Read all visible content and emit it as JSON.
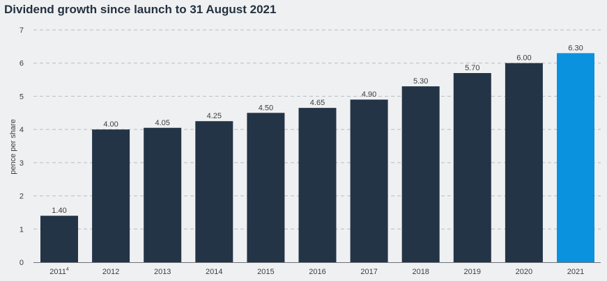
{
  "chart_data": {
    "type": "bar",
    "title": "Dividend growth since launch to 31 August 2021",
    "ylabel": "pence per share",
    "xlabel": "",
    "ylim": [
      0,
      7
    ],
    "yticks": [
      "0",
      "1",
      "2",
      "3",
      "4",
      "5",
      "6",
      "7"
    ],
    "grid": true,
    "categories": [
      "2011",
      "2012",
      "2013",
      "2014",
      "2015",
      "2016",
      "2017",
      "2018",
      "2019",
      "2020",
      "2021"
    ],
    "category_superscripts": [
      "4",
      "",
      "",
      "",
      "",
      "",
      "",
      "",
      "",
      "",
      ""
    ],
    "values": [
      1.4,
      4.0,
      4.05,
      4.25,
      4.5,
      4.65,
      4.9,
      5.3,
      5.7,
      6.0,
      6.3
    ],
    "value_labels": [
      "1.40",
      "4.00",
      "4.05",
      "4.25",
      "4.50",
      "4.65",
      "4.90",
      "5.30",
      "5.70",
      "6.00",
      "6.30"
    ],
    "colors": {
      "bar": "#233446",
      "highlight_bar": "#0a92df",
      "grid": "#b8bcc2",
      "axis": "#6b6f74",
      "text": "#3c3c3c"
    },
    "highlight_category": "2021"
  }
}
